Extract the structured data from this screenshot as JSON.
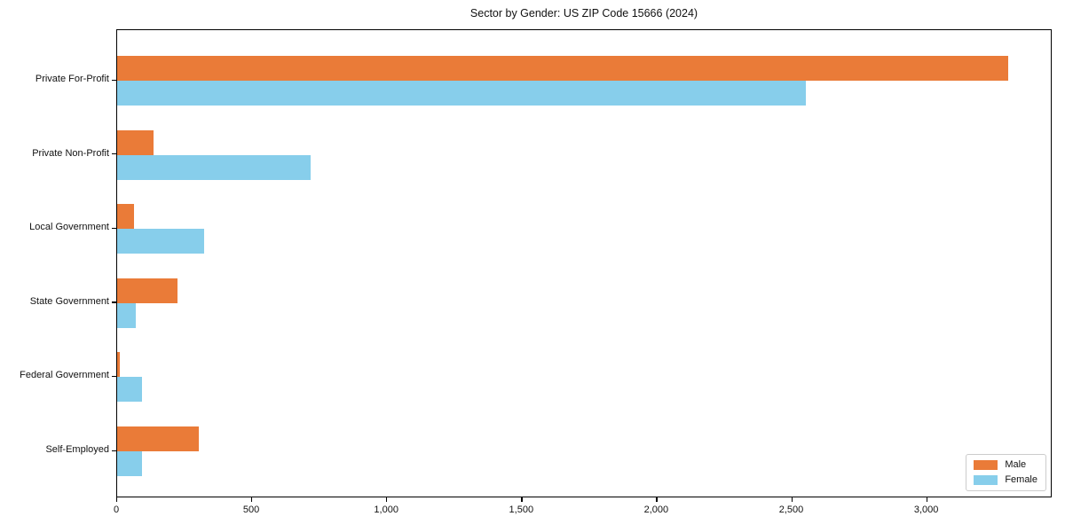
{
  "chart_data": {
    "type": "bar",
    "orientation": "horizontal",
    "title": "Sector by Gender: US ZIP Code 15666 (2024)",
    "categories": [
      "Private For-Profit",
      "Private Non-Profit",
      "Local Government",
      "State Government",
      "Federal Government",
      "Self-Employed"
    ],
    "series": [
      {
        "name": "Male",
        "color": "#EA7B38",
        "values": [
          3300,
          135,
          62,
          225,
          10,
          302
        ]
      },
      {
        "name": "Female",
        "color": "#87CEEB",
        "values": [
          2550,
          715,
          322,
          70,
          92,
          92
        ]
      }
    ],
    "xlim": [
      0,
      3465
    ],
    "x_ticks": [
      0,
      500,
      1000,
      1500,
      2000,
      2500,
      3000
    ],
    "x_tick_labels": [
      "0",
      "500",
      "1,000",
      "1,500",
      "2,000",
      "2,500",
      "3,000"
    ],
    "xlabel": "",
    "ylabel": "",
    "grid": false,
    "legend_position": "lower right",
    "legend_labels": [
      "Male",
      "Female"
    ]
  }
}
